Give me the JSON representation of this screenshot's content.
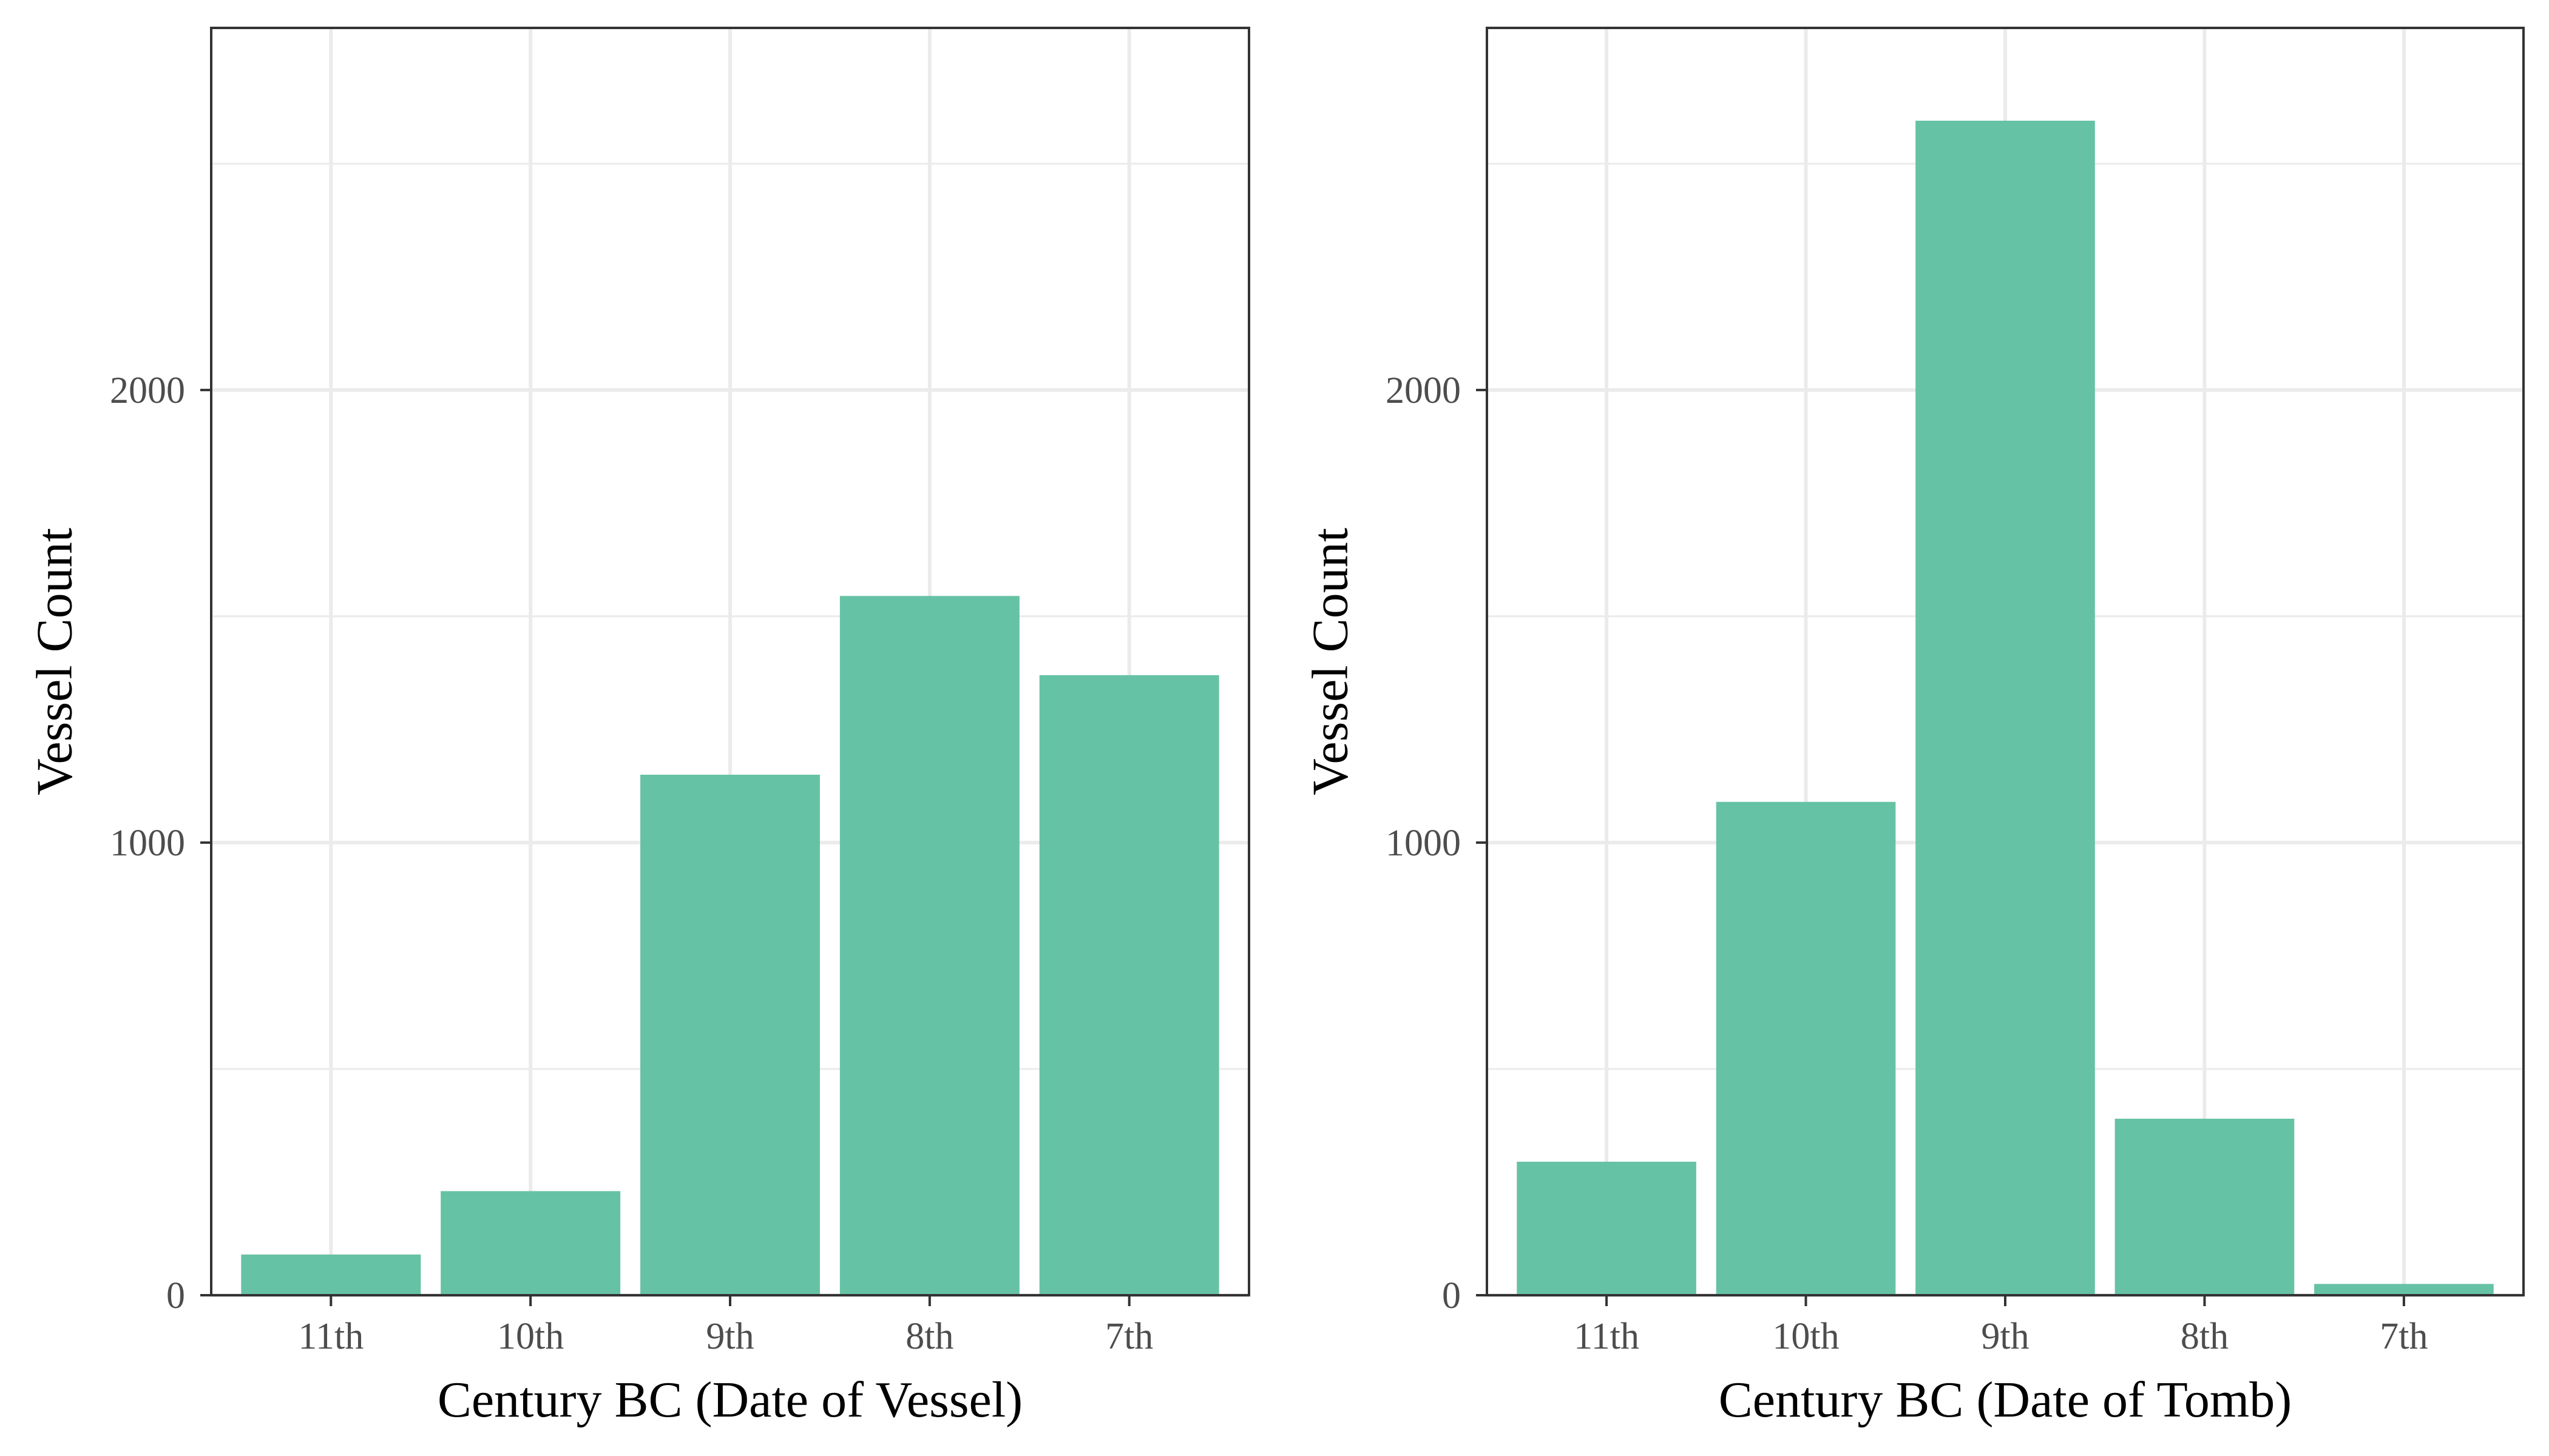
{
  "chart_data": [
    {
      "type": "bar",
      "categories": [
        "11th",
        "10th",
        "9th",
        "8th",
        "7th"
      ],
      "values": [
        90,
        230,
        1150,
        1545,
        1370
      ],
      "xlabel": "Century BC (Date of Vessel)",
      "ylabel": "Vessel Count",
      "ylim": [
        0,
        2800
      ],
      "yticks": [
        0,
        1000,
        2000
      ],
      "grid": true,
      "bar_color": "#66c2a5"
    },
    {
      "type": "bar",
      "categories": [
        "11th",
        "10th",
        "9th",
        "8th",
        "7th"
      ],
      "values": [
        295,
        1090,
        2595,
        390,
        25
      ],
      "xlabel": "Century BC (Date of Tomb)",
      "ylabel": "Vessel Count",
      "ylim": [
        0,
        2800
      ],
      "yticks": [
        0,
        1000,
        2000
      ],
      "grid": true,
      "bar_color": "#66c2a5"
    }
  ]
}
